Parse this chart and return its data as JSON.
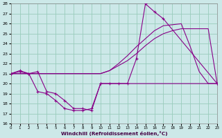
{
  "bg_color": "#cce8e8",
  "grid_color": "#99ccbb",
  "line_color": "#880088",
  "xlabel": "Windchill (Refroidissement éolien,°C)",
  "xlim": [
    0,
    23
  ],
  "ylim": [
    16,
    28
  ],
  "yticks": [
    16,
    17,
    18,
    19,
    20,
    21,
    22,
    23,
    24,
    25,
    26,
    27,
    28
  ],
  "xticks": [
    0,
    1,
    2,
    3,
    4,
    5,
    6,
    7,
    8,
    9,
    10,
    11,
    12,
    13,
    14,
    15,
    16,
    17,
    18,
    19,
    20,
    21,
    22,
    23
  ],
  "line1_x": [
    0,
    1,
    2,
    3,
    4,
    5,
    6,
    7,
    8,
    9,
    10,
    11,
    12,
    13,
    14,
    15,
    16,
    17,
    18,
    19,
    20,
    21,
    22,
    23
  ],
  "line1_y": [
    21.0,
    21.0,
    21.0,
    21.0,
    21.0,
    21.0,
    21.0,
    21.0,
    21.0,
    21.0,
    21.0,
    21.3,
    21.8,
    22.3,
    23.0,
    23.8,
    24.5,
    25.0,
    25.3,
    25.5,
    25.5,
    25.5,
    25.5,
    20.0
  ],
  "line2_x": [
    0,
    1,
    2,
    3,
    10,
    11,
    12,
    13,
    14,
    15,
    16,
    17,
    18,
    19,
    20,
    21,
    22,
    23
  ],
  "line2_y": [
    21.0,
    21.0,
    21.0,
    21.0,
    21.0,
    21.3,
    22.0,
    22.8,
    23.7,
    24.5,
    25.3,
    25.8,
    25.9,
    26.0,
    23.7,
    21.2,
    20.0,
    20.0
  ],
  "line3_x": [
    0,
    1,
    2,
    3,
    4,
    5,
    6,
    7,
    8,
    9,
    10,
    11,
    12,
    13,
    14,
    15,
    16,
    17,
    23
  ],
  "line3_y": [
    21.0,
    21.3,
    21.0,
    21.2,
    19.2,
    19.0,
    18.3,
    17.5,
    17.5,
    17.3,
    20.0,
    20.0,
    20.0,
    20.0,
    22.5,
    28.0,
    27.2,
    26.5,
    20.0
  ],
  "line4_x": [
    0,
    1,
    2,
    3,
    4,
    5,
    6,
    7,
    8,
    9,
    10,
    23
  ],
  "line4_y": [
    21.0,
    21.2,
    21.0,
    19.2,
    19.0,
    18.3,
    17.5,
    17.3,
    17.3,
    17.5,
    20.0,
    20.0
  ]
}
